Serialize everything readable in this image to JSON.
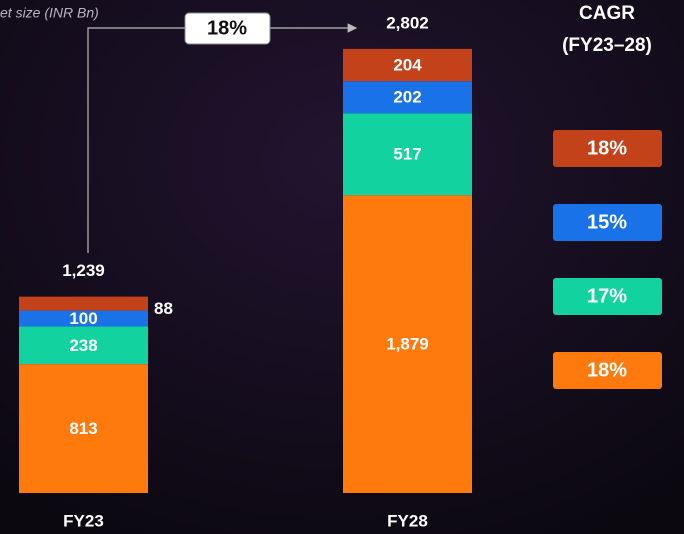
{
  "chart_data": {
    "type": "stacked-bar",
    "title": "et size (INR Bn)",
    "categories": [
      "FY23",
      "FY28"
    ],
    "series": [
      {
        "color": "#ff7a0d",
        "values": [
          813,
          1879
        ],
        "value_labels": [
          "813",
          "1,879"
        ],
        "cagr": 18,
        "cagr_label": "18%"
      },
      {
        "color": "#12d39f",
        "values": [
          238,
          517
        ],
        "cagr": 17,
        "cagr_label": "17%"
      },
      {
        "color": "#1a72e8",
        "values": [
          100,
          202
        ],
        "cagr": 15,
        "cagr_label": "15%"
      },
      {
        "color": "#c4421a",
        "values": [
          88,
          204
        ],
        "cagr": 18,
        "cagr_label": "18%"
      }
    ],
    "totals": [
      1239,
      2802
    ],
    "total_labels": [
      "1,239",
      "2,802"
    ],
    "growth_value": 18,
    "growth_label": "18%",
    "cagr_title": [
      "CAGR",
      "(FY23–28)"
    ]
  }
}
